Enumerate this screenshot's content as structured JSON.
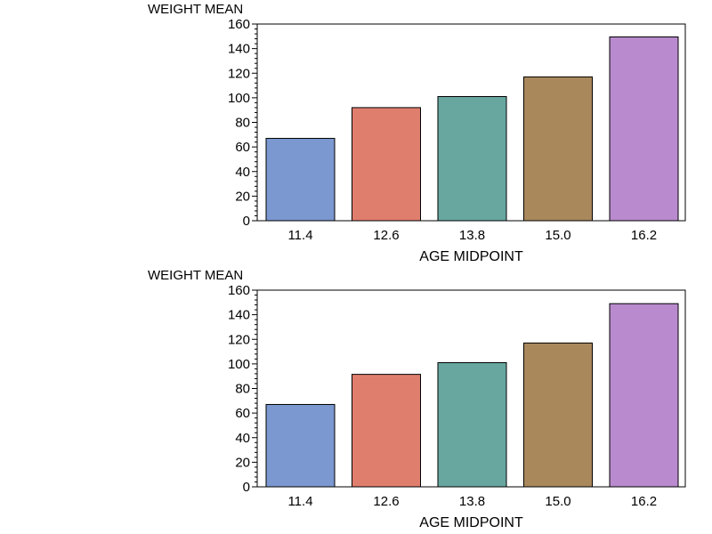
{
  "chart_data": [
    {
      "type": "bar",
      "ylabel": "WEIGHT MEAN",
      "xlabel": "AGE MIDPOINT",
      "categories": [
        "11.4",
        "12.6",
        "13.8",
        "15.0",
        "16.2"
      ],
      "values": [
        67,
        92,
        101,
        117,
        149.5
      ],
      "colors": [
        "#7b98d0",
        "#e07e6e",
        "#67a7a0",
        "#a9885c",
        "#b98acd"
      ],
      "ylim": [
        0,
        160
      ],
      "yticks": [
        0,
        20,
        40,
        60,
        80,
        100,
        120,
        140,
        160
      ],
      "ytick_labels": [
        "0",
        "20",
        "40",
        "60",
        "80",
        "100",
        "120",
        "140",
        "160"
      ],
      "minor_ticks_per_major": 5,
      "grid": false,
      "legend": "none"
    },
    {
      "type": "bar",
      "ylabel": "WEIGHT MEAN",
      "xlabel": "AGE MIDPOINT",
      "categories": [
        "11.4",
        "12.6",
        "13.8",
        "15.0",
        "16.2"
      ],
      "values": [
        67,
        91.5,
        101,
        117,
        149
      ],
      "colors": [
        "#7b98d0",
        "#e07e6e",
        "#67a7a0",
        "#a9885c",
        "#b98acd"
      ],
      "ylim": [
        0,
        160
      ],
      "yticks": [
        0,
        20,
        40,
        60,
        80,
        100,
        120,
        140,
        160
      ],
      "ytick_labels": [
        "0",
        "20",
        "40",
        "60",
        "80",
        "100",
        "120",
        "140",
        "160"
      ],
      "minor_ticks_per_major": 5,
      "grid": false,
      "legend": "none"
    }
  ]
}
